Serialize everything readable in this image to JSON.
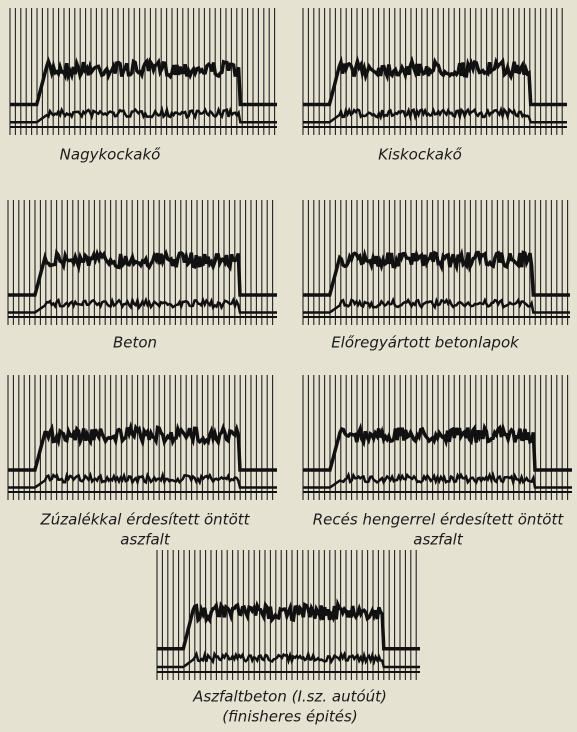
{
  "panels": [
    {
      "caption": [
        "Nagykockakő"
      ]
    },
    {
      "caption": [
        "Kiskockakő"
      ]
    },
    {
      "caption": [
        "Beton"
      ]
    },
    {
      "caption": [
        "Előregyártott betonlapok"
      ]
    },
    {
      "caption": [
        "Zúzalékkal érdesített öntött",
        "aszfalt"
      ]
    },
    {
      "caption": [
        "Recés hengerrel érdesített öntött",
        "aszfalt"
      ]
    },
    {
      "caption": [
        "Aszfaltbeton (I.sz. autóút)",
        "(finisheres épités)"
      ]
    }
  ]
}
